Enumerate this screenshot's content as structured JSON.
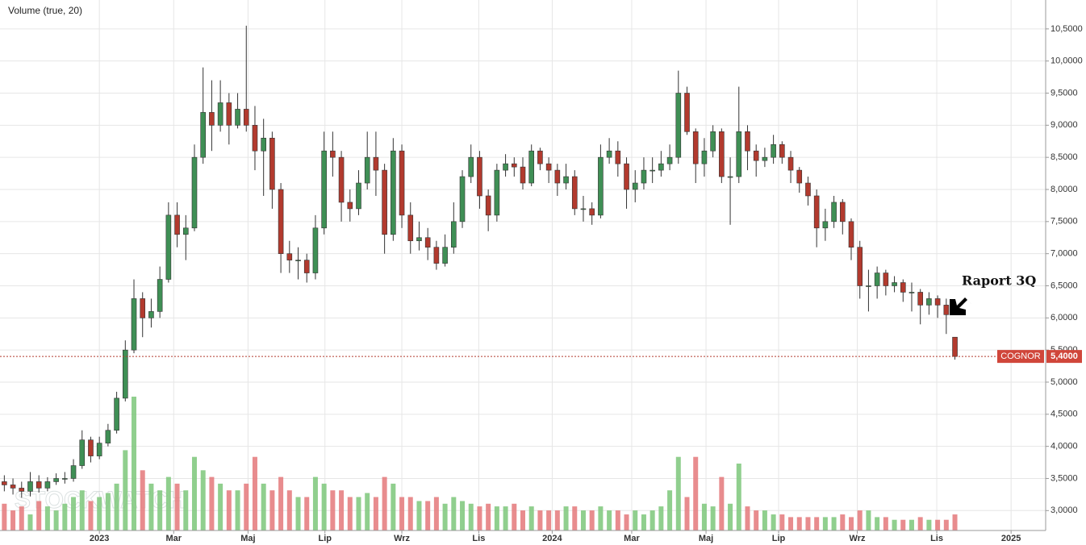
{
  "chart_data": {
    "type": "candlestick",
    "title": "Volume (true, 20)",
    "watermark": "STOCKWATCH",
    "annotation": "Raport 3Q",
    "symbol": "COGNOR",
    "last_price": {
      "value": 5.4,
      "label": "5,4000"
    },
    "up_color": "#3f8f55",
    "down_color": "#b23a2e",
    "volume_up_color": "#7cc77a",
    "volume_down_color": "#e4787a",
    "grid": true,
    "xlim": [
      -0.5,
      120.5
    ],
    "xticks": [
      {
        "value": 11.0,
        "label": "2023"
      },
      {
        "value": 19.6,
        "label": "Mar"
      },
      {
        "value": 28.2,
        "label": "Maj"
      },
      {
        "value": 37.1,
        "label": "Lip"
      },
      {
        "value": 46.0,
        "label": "Wrz"
      },
      {
        "value": 54.9,
        "label": "Lis"
      },
      {
        "value": 63.4,
        "label": "2024"
      },
      {
        "value": 72.6,
        "label": "Mar"
      },
      {
        "value": 81.2,
        "label": "Maj"
      },
      {
        "value": 89.6,
        "label": "Lip"
      },
      {
        "value": 98.7,
        "label": "Wrz"
      },
      {
        "value": 107.9,
        "label": "Lis"
      },
      {
        "value": 116.5,
        "label": "2025"
      }
    ],
    "ylim": [
      2.69,
      10.95
    ],
    "yticks": [
      {
        "value": 3.0,
        "label": "3,0000"
      },
      {
        "value": 3.5,
        "label": "3,5000"
      },
      {
        "value": 4.0,
        "label": "4,0000"
      },
      {
        "value": 4.5,
        "label": "4,5000"
      },
      {
        "value": 5.0,
        "label": "5,0000"
      },
      {
        "value": 5.5,
        "label": "5,5000"
      },
      {
        "value": 6.0,
        "label": "6,0000"
      },
      {
        "value": 6.5,
        "label": "6,5000"
      },
      {
        "value": 7.0,
        "label": "7,0000"
      },
      {
        "value": 7.5,
        "label": "7,5000"
      },
      {
        "value": 8.0,
        "label": "8,0000"
      },
      {
        "value": 8.5,
        "label": "8,5000"
      },
      {
        "value": 9.0,
        "label": "9,0000"
      },
      {
        "value": 9.5,
        "label": "9,5000"
      },
      {
        "value": 10.0,
        "label": "10,0000"
      },
      {
        "value": 10.5,
        "label": "10,5000"
      }
    ],
    "open": [
      3.45,
      3.4,
      3.35,
      3.3,
      3.45,
      3.35,
      3.45,
      3.5,
      3.5,
      3.7,
      4.1,
      3.85,
      4.05,
      4.25,
      4.75,
      5.5,
      6.3,
      6.0,
      6.1,
      6.6,
      7.6,
      7.3,
      7.4,
      8.5,
      9.2,
      9.0,
      9.35,
      9.0,
      9.25,
      9.0,
      8.6,
      8.8,
      8.0,
      7.0,
      6.9,
      6.9,
      6.7,
      7.4,
      8.6,
      8.5,
      7.8,
      7.7,
      8.1,
      8.5,
      8.3,
      7.3,
      8.6,
      7.6,
      7.2,
      7.25,
      7.1,
      6.85,
      7.1,
      7.5,
      8.2,
      8.5,
      7.9,
      7.6,
      8.3,
      8.4,
      8.35,
      8.1,
      8.6,
      8.4,
      8.3,
      8.1,
      8.2,
      7.7,
      7.7,
      7.6,
      8.5,
      8.6,
      8.4,
      8.0,
      8.1,
      8.3,
      8.3,
      8.4,
      8.5,
      9.5,
      8.9,
      8.4,
      8.6,
      8.9,
      8.2,
      8.2,
      8.9,
      8.6,
      8.45,
      8.5,
      8.7,
      8.5,
      8.3,
      8.1,
      7.9,
      7.4,
      7.5,
      7.8,
      7.5,
      7.1,
      6.5,
      6.5,
      6.7,
      6.5,
      6.55,
      6.4,
      6.4,
      6.2,
      6.3,
      6.2,
      5.7
    ],
    "high": [
      3.55,
      3.5,
      3.45,
      3.6,
      3.55,
      3.52,
      3.58,
      3.6,
      3.8,
      4.25,
      4.15,
      4.15,
      4.35,
      4.85,
      5.65,
      6.6,
      6.4,
      6.3,
      6.8,
      7.8,
      7.8,
      7.6,
      8.7,
      9.9,
      9.7,
      9.7,
      9.5,
      9.5,
      10.55,
      9.3,
      9.1,
      8.9,
      8.1,
      7.2,
      7.1,
      7.0,
      7.6,
      8.9,
      8.9,
      8.6,
      8.0,
      8.3,
      8.9,
      8.9,
      8.4,
      8.8,
      8.7,
      7.8,
      7.5,
      7.4,
      7.2,
      7.3,
      7.8,
      8.3,
      8.7,
      8.6,
      8.0,
      8.4,
      8.55,
      8.5,
      8.5,
      8.7,
      8.65,
      8.5,
      8.4,
      8.4,
      8.3,
      7.9,
      7.8,
      8.7,
      8.8,
      8.75,
      8.5,
      8.3,
      8.5,
      8.5,
      8.6,
      8.7,
      9.85,
      9.6,
      8.95,
      8.8,
      9.0,
      8.95,
      8.5,
      9.6,
      9.0,
      8.7,
      8.65,
      8.85,
      8.75,
      8.6,
      8.35,
      8.2,
      8.0,
      7.7,
      7.9,
      7.85,
      7.55,
      7.2,
      6.75,
      6.8,
      6.75,
      6.65,
      6.6,
      6.55,
      6.45,
      6.4,
      6.35,
      6.3,
      5.7
    ],
    "low": [
      3.3,
      3.25,
      3.2,
      3.22,
      3.28,
      3.3,
      3.4,
      3.42,
      3.45,
      3.65,
      3.75,
      3.8,
      4.0,
      4.2,
      4.7,
      5.45,
      5.7,
      5.85,
      6.0,
      6.55,
      7.1,
      6.9,
      7.35,
      8.4,
      8.6,
      8.9,
      8.7,
      8.95,
      8.9,
      8.3,
      7.9,
      7.7,
      6.7,
      6.7,
      6.6,
      6.55,
      6.6,
      7.3,
      8.2,
      7.5,
      7.5,
      7.6,
      8.0,
      7.9,
      7.0,
      7.2,
      7.4,
      7.0,
      7.05,
      6.9,
      6.75,
      6.8,
      7.0,
      7.4,
      8.1,
      7.7,
      7.35,
      7.5,
      8.2,
      8.2,
      8.0,
      8.05,
      8.3,
      8.1,
      7.9,
      8.0,
      7.6,
      7.5,
      7.45,
      7.55,
      8.4,
      8.2,
      7.7,
      7.8,
      8.0,
      8.1,
      8.2,
      8.3,
      8.4,
      8.85,
      8.1,
      8.2,
      8.5,
      8.1,
      7.45,
      8.1,
      8.3,
      8.2,
      8.35,
      8.4,
      8.4,
      8.1,
      7.95,
      7.75,
      7.1,
      7.2,
      7.4,
      7.3,
      6.9,
      6.3,
      6.1,
      6.3,
      6.35,
      6.4,
      6.25,
      6.1,
      5.9,
      6.05,
      6.0,
      5.75,
      5.35
    ],
    "close": [
      3.4,
      3.35,
      3.3,
      3.45,
      3.35,
      3.45,
      3.5,
      3.5,
      3.7,
      4.1,
      3.85,
      4.05,
      4.25,
      4.75,
      5.5,
      6.3,
      6.0,
      6.1,
      6.6,
      7.6,
      7.3,
      7.4,
      8.5,
      9.2,
      9.0,
      9.35,
      9.0,
      9.25,
      9.0,
      8.6,
      8.8,
      8.0,
      7.0,
      6.9,
      6.9,
      6.7,
      7.4,
      8.6,
      8.5,
      7.8,
      7.7,
      8.1,
      8.5,
      8.3,
      7.3,
      8.6,
      7.6,
      7.2,
      7.25,
      7.1,
      6.85,
      7.1,
      7.5,
      8.2,
      8.5,
      7.9,
      7.6,
      8.3,
      8.4,
      8.35,
      8.1,
      8.6,
      8.4,
      8.3,
      8.1,
      8.2,
      7.7,
      7.7,
      7.6,
      8.5,
      8.6,
      8.4,
      8.0,
      8.1,
      8.3,
      8.3,
      8.4,
      8.5,
      9.5,
      8.9,
      8.4,
      8.6,
      8.9,
      8.2,
      8.2,
      8.9,
      8.6,
      8.45,
      8.5,
      8.7,
      8.5,
      8.3,
      8.1,
      7.9,
      7.4,
      7.5,
      7.8,
      7.5,
      7.1,
      6.5,
      6.5,
      6.7,
      6.5,
      6.55,
      6.4,
      6.4,
      6.2,
      6.3,
      6.2,
      6.05,
      5.4
    ],
    "volume": [
      20,
      15,
      18,
      12,
      22,
      18,
      15,
      20,
      25,
      30,
      22,
      25,
      28,
      35,
      60,
      100,
      45,
      35,
      30,
      40,
      35,
      30,
      55,
      45,
      40,
      35,
      30,
      30,
      35,
      55,
      35,
      30,
      40,
      30,
      25,
      25,
      40,
      35,
      30,
      30,
      25,
      25,
      28,
      25,
      40,
      35,
      25,
      25,
      22,
      22,
      25,
      20,
      25,
      22,
      20,
      18,
      20,
      18,
      18,
      20,
      15,
      18,
      15,
      15,
      15,
      18,
      18,
      15,
      15,
      18,
      15,
      15,
      12,
      15,
      12,
      15,
      18,
      30,
      55,
      25,
      55,
      20,
      18,
      40,
      20,
      50,
      18,
      15,
      15,
      12,
      12,
      10,
      10,
      10,
      10,
      10,
      10,
      12,
      10,
      15,
      15,
      10,
      10,
      8,
      8,
      8,
      10,
      8,
      8,
      8,
      12
    ]
  }
}
